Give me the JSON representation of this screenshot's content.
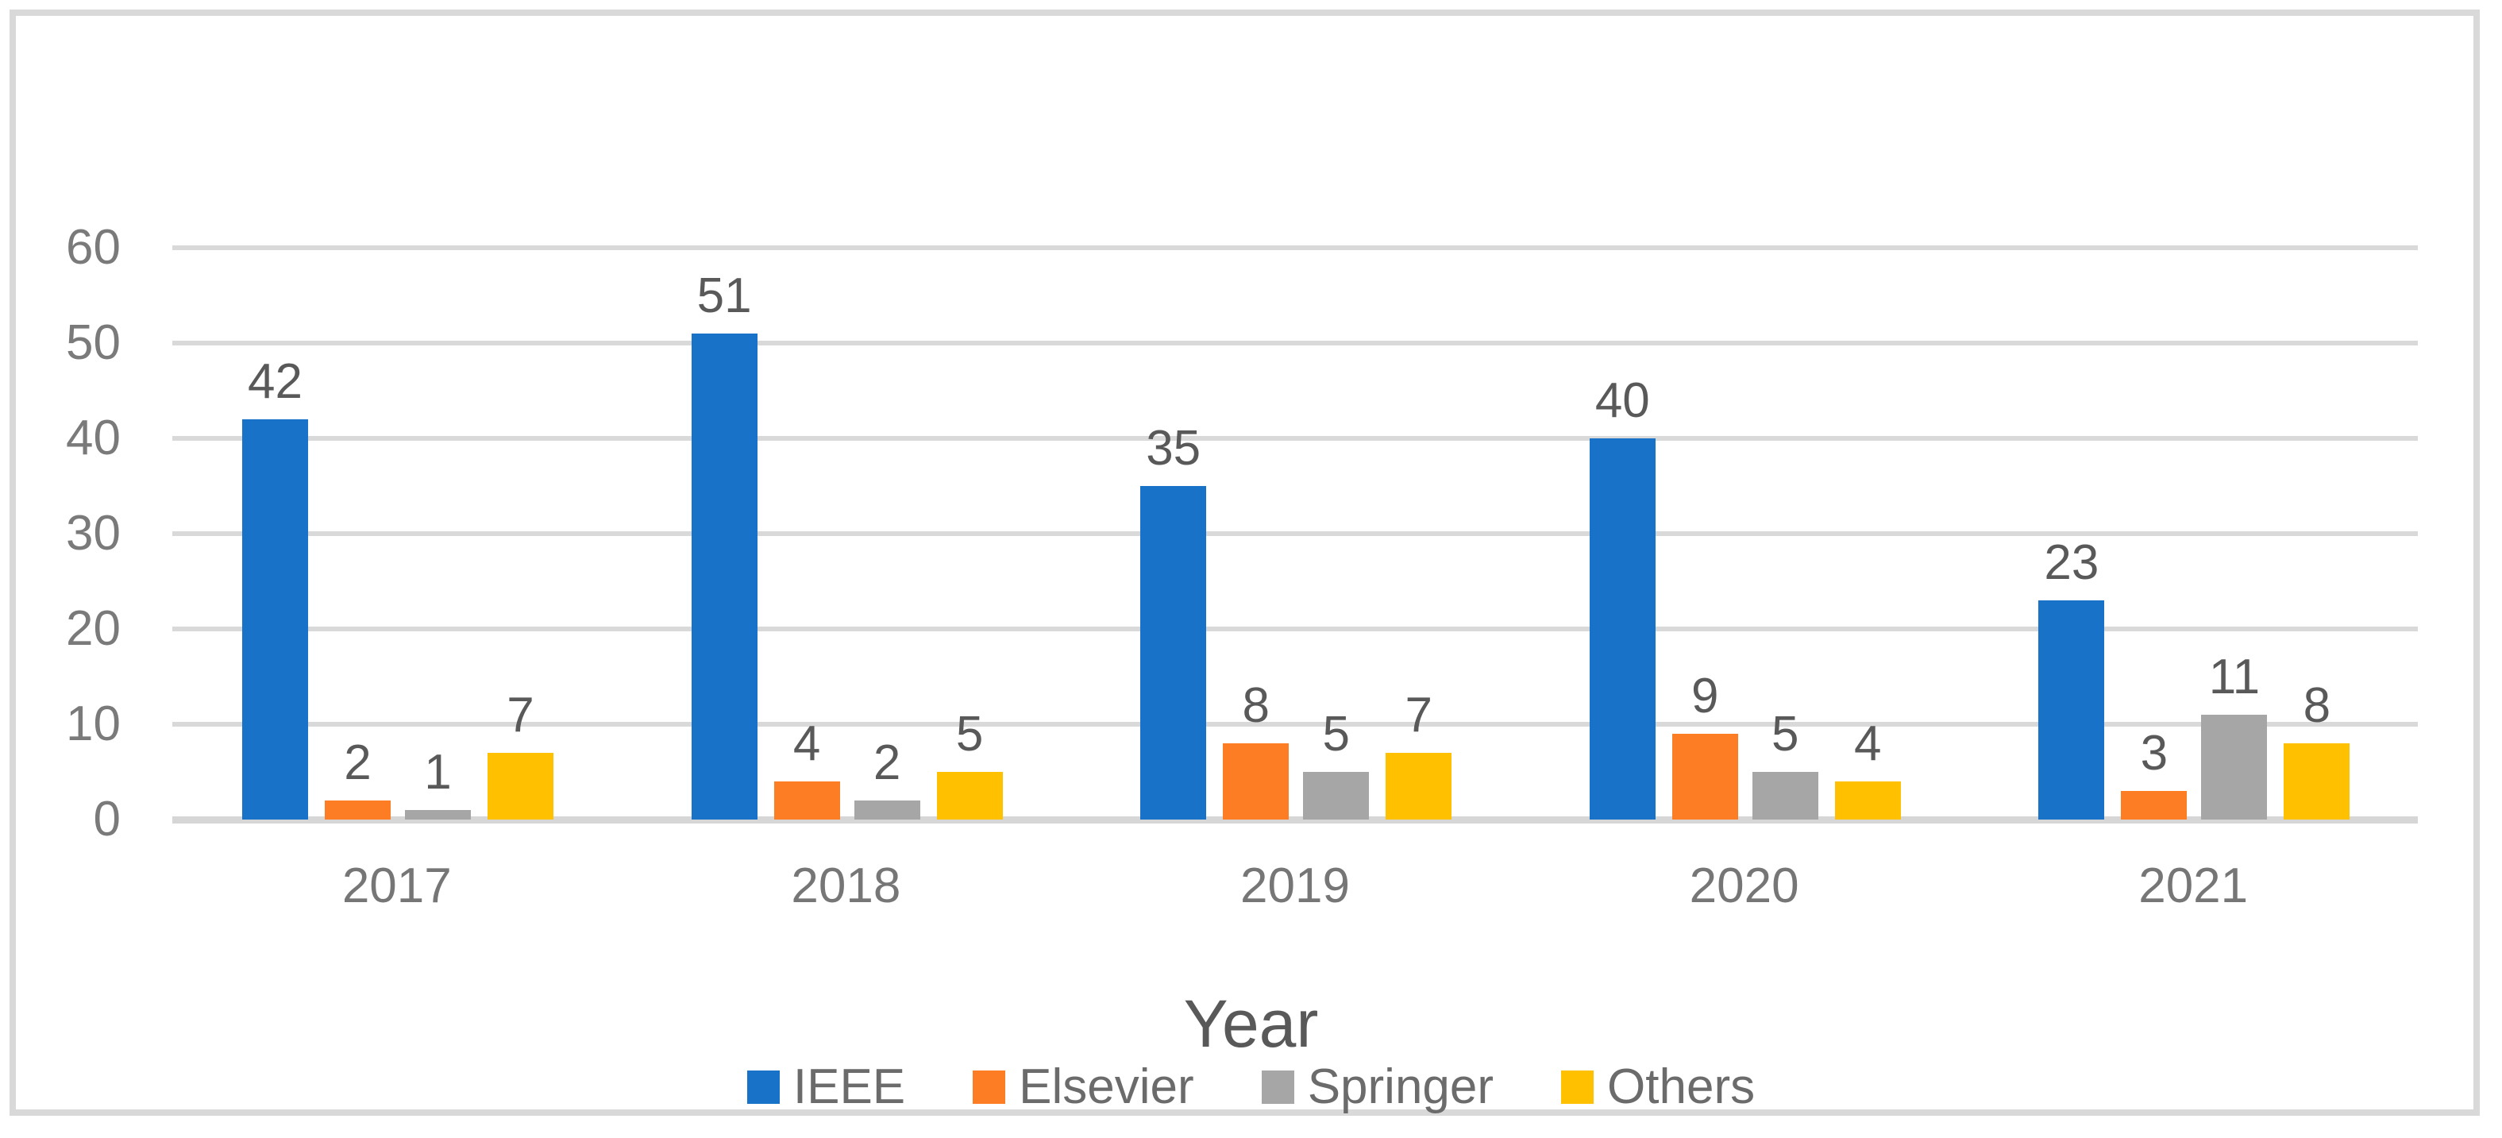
{
  "figure": {
    "background": "#FFFFFF",
    "border_color": "#D9D9D9"
  },
  "chart_data": {
    "type": "bar",
    "title": "",
    "xlabel": "Year",
    "ylabel": "",
    "categories": [
      "2017",
      "2018",
      "2019",
      "2020",
      "2021"
    ],
    "series": [
      {
        "name": "IEEE",
        "color": "#1772C8",
        "values": [
          42,
          51,
          35,
          40,
          23
        ]
      },
      {
        "name": "Elsevier",
        "color": "#FC7D23",
        "values": [
          2,
          4,
          8,
          9,
          3
        ]
      },
      {
        "name": "Springer",
        "color": "#A6A6A6",
        "values": [
          1,
          2,
          5,
          5,
          11
        ]
      },
      {
        "name": "Others",
        "color": "#FFC000",
        "values": [
          7,
          5,
          7,
          4,
          8
        ]
      }
    ],
    "ylim": [
      0,
      60
    ],
    "ytick_step": 10,
    "yticks": [
      "0",
      "10",
      "20",
      "30",
      "40",
      "50",
      "60"
    ],
    "grid": "horizontal",
    "gridline_color": "#D9D9D9",
    "data_labels": true,
    "legend_position": "bottom",
    "axis_label_color": "#7A7A7A",
    "data_label_color": "#595959"
  }
}
